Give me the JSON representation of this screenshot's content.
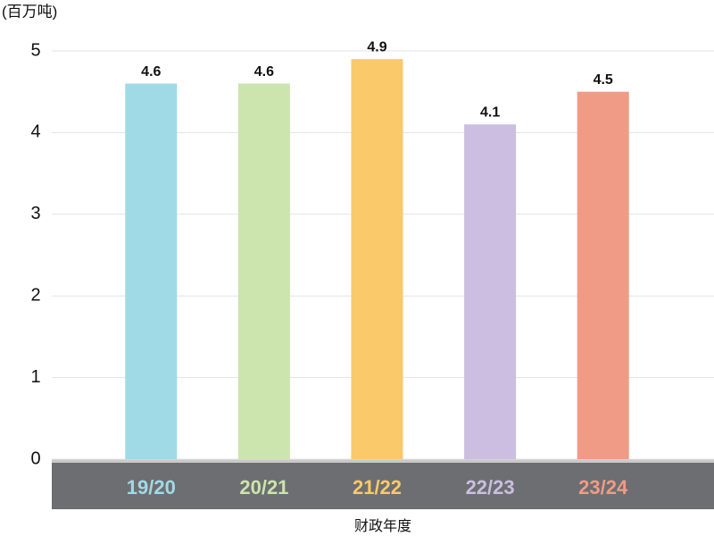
{
  "chart_data": {
    "type": "bar",
    "y_axis_label": "(百万吨)",
    "x_axis_label": "财政年度",
    "categories": [
      "19/20",
      "20/21",
      "21/22",
      "22/23",
      "23/24"
    ],
    "values": [
      4.6,
      4.6,
      4.9,
      4.1,
      4.5
    ],
    "colors": [
      "#a0dae6",
      "#cce4ad",
      "#f9c96a",
      "#cbbee0",
      "#f09b86"
    ],
    "ylim": [
      0,
      5
    ],
    "yticks": [
      0,
      1,
      2,
      3,
      4,
      5
    ],
    "grid": true
  }
}
